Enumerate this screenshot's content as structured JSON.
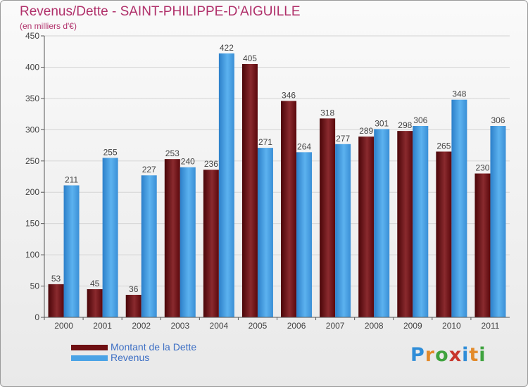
{
  "title": "Revenus/Dette - SAINT-PHILIPPE-D'AIGUILLE",
  "subtitle": "(en milliers d'€)",
  "colors": {
    "title": "#b0306a",
    "axis_text": "#444444",
    "grid": "#d4d4d4",
    "legend_text": "#3d6fc4"
  },
  "legend": [
    {
      "label": "Montant de la Dette",
      "color": "#6e0f12"
    },
    {
      "label": "Revenus",
      "color": "#4aa3e6"
    }
  ],
  "logo": {
    "text": "Proxiti",
    "colors": [
      "#2f8dd8",
      "#e38a2a",
      "#3fa33f",
      "#c8352b",
      "#2f8dd8",
      "#e38a2a",
      "#3fa33f"
    ]
  },
  "chart_data": {
    "type": "bar",
    "categories": [
      "2000",
      "2001",
      "2002",
      "2003",
      "2004",
      "2005",
      "2006",
      "2007",
      "2008",
      "2009",
      "2010",
      "2011"
    ],
    "series": [
      {
        "name": "Montant de la Dette",
        "color": "#6e0f12",
        "values": [
          53,
          45,
          36,
          253,
          236,
          405,
          346,
          318,
          289,
          298,
          265,
          230
        ]
      },
      {
        "name": "Revenus",
        "color": "#4aa3e6",
        "values": [
          211,
          255,
          227,
          240,
          422,
          271,
          264,
          277,
          301,
          306,
          348,
          306
        ]
      }
    ],
    "ylim": [
      0,
      450
    ],
    "yticks": [
      0,
      50,
      100,
      150,
      200,
      250,
      300,
      350,
      400,
      450
    ],
    "grid": true,
    "legend_position": "bottom-left",
    "xlabel": "",
    "ylabel": ""
  }
}
